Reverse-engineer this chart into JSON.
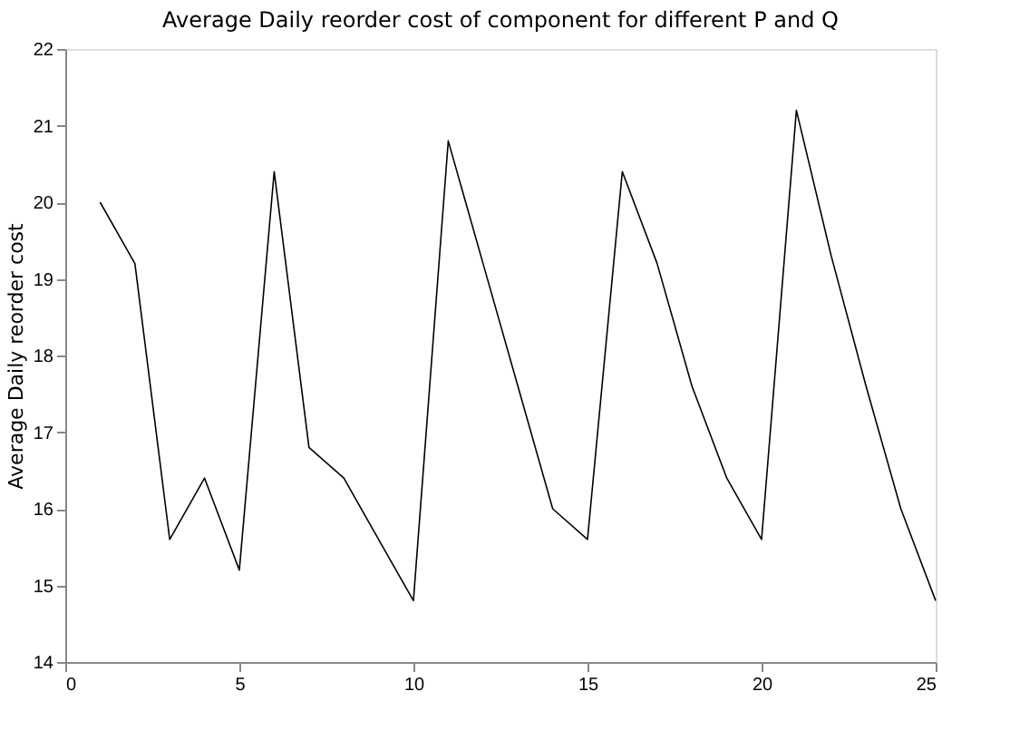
{
  "chart_data": {
    "type": "line",
    "title": "Average Daily reorder cost of component for different P and Q",
    "ylabel": "Average Daily reorder cost",
    "x": [
      1,
      2,
      3,
      4,
      5,
      6,
      7,
      8,
      9,
      10,
      11,
      12,
      13,
      14,
      15,
      16,
      17,
      18,
      19,
      20,
      21,
      22,
      23,
      24,
      25
    ],
    "series": [
      {
        "color": "#000000",
        "values": [
          20.0,
          19.2,
          15.6,
          16.4,
          15.2,
          20.4,
          16.8,
          16.4,
          15.6,
          14.8,
          20.8,
          19.2,
          17.6,
          16.0,
          15.6,
          20.4,
          19.2,
          17.6,
          16.4,
          15.6,
          21.2,
          19.3,
          17.6,
          16.0,
          14.8
        ]
      }
    ],
    "xlim": [
      0,
      25
    ],
    "xticks": [
      0,
      5,
      10,
      15,
      20,
      25
    ],
    "ylim": [
      14,
      22
    ],
    "yticks": [
      14,
      15,
      16,
      17,
      18,
      19,
      20,
      21,
      22
    ],
    "grid": false,
    "marker": "none",
    "line_style": "solid"
  }
}
